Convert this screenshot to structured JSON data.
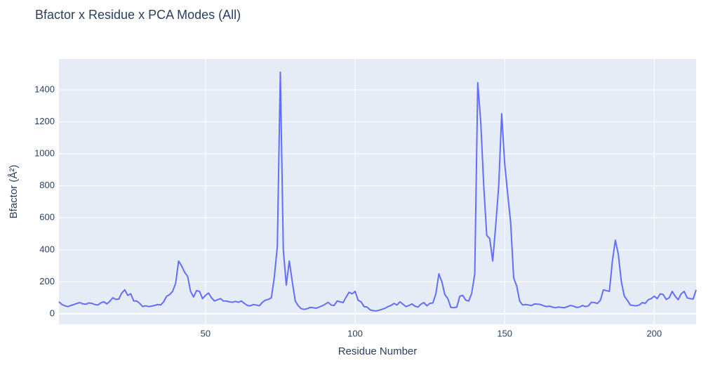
{
  "chart_data": {
    "type": "line",
    "title": "Bfactor x Residue x PCA Modes (All)",
    "x_label": "Residue Number",
    "y_label": "Bfactor (Å²)",
    "color": "#636efa",
    "grid": true,
    "xlim": [
      1,
      214
    ],
    "xticks": [
      50,
      100,
      150,
      200
    ],
    "ylim": [
      -66,
      1593
    ],
    "yticks": [
      0,
      200,
      400,
      600,
      800,
      1000,
      1200,
      1400
    ],
    "x": [
      1,
      2,
      3,
      4,
      5,
      6,
      7,
      8,
      9,
      10,
      11,
      12,
      13,
      14,
      15,
      16,
      17,
      18,
      19,
      20,
      21,
      22,
      23,
      24,
      25,
      26,
      27,
      28,
      29,
      30,
      31,
      32,
      33,
      34,
      35,
      36,
      37,
      38,
      39,
      40,
      41,
      42,
      43,
      44,
      45,
      46,
      47,
      48,
      49,
      50,
      51,
      52,
      53,
      54,
      55,
      56,
      57,
      58,
      59,
      60,
      61,
      62,
      63,
      64,
      65,
      66,
      67,
      68,
      69,
      70,
      71,
      72,
      73,
      74,
      75,
      76,
      77,
      78,
      79,
      80,
      81,
      82,
      83,
      84,
      85,
      86,
      87,
      88,
      89,
      90,
      91,
      92,
      93,
      94,
      95,
      96,
      97,
      98,
      99,
      100,
      101,
      102,
      103,
      104,
      105,
      106,
      107,
      108,
      109,
      110,
      111,
      112,
      113,
      114,
      115,
      116,
      117,
      118,
      119,
      120,
      121,
      122,
      123,
      124,
      125,
      126,
      127,
      128,
      129,
      130,
      131,
      132,
      133,
      134,
      135,
      136,
      137,
      138,
      139,
      140,
      141,
      142,
      143,
      144,
      145,
      146,
      147,
      148,
      149,
      150,
      151,
      152,
      153,
      154,
      155,
      156,
      157,
      158,
      159,
      160,
      161,
      162,
      163,
      164,
      165,
      166,
      167,
      168,
      169,
      170,
      171,
      172,
      173,
      174,
      175,
      176,
      177,
      178,
      179,
      180,
      181,
      182,
      183,
      184,
      185,
      186,
      187,
      188,
      189,
      190,
      191,
      192,
      193,
      194,
      195,
      196,
      197,
      198,
      199,
      200,
      201,
      202,
      203,
      204,
      205,
      206,
      207,
      208,
      209,
      210,
      211,
      212,
      213,
      214
    ],
    "values": [
      75,
      58,
      50,
      45,
      52,
      58,
      65,
      70,
      62,
      60,
      68,
      65,
      58,
      55,
      68,
      75,
      62,
      78,
      100,
      90,
      92,
      130,
      150,
      115,
      125,
      80,
      80,
      65,
      45,
      50,
      45,
      48,
      52,
      58,
      55,
      75,
      110,
      120,
      140,
      190,
      330,
      300,
      260,
      235,
      140,
      105,
      145,
      140,
      95,
      115,
      130,
      100,
      80,
      88,
      95,
      80,
      80,
      75,
      72,
      78,
      72,
      80,
      65,
      52,
      50,
      58,
      55,
      50,
      72,
      85,
      90,
      100,
      230,
      420,
      1510,
      400,
      180,
      330,
      200,
      80,
      50,
      32,
      28,
      32,
      40,
      38,
      35,
      42,
      50,
      60,
      72,
      55,
      52,
      80,
      75,
      70,
      105,
      135,
      125,
      140,
      85,
      75,
      45,
      42,
      25,
      20,
      18,
      22,
      28,
      35,
      45,
      52,
      65,
      55,
      75,
      60,
      45,
      52,
      62,
      48,
      42,
      60,
      70,
      50,
      65,
      68,
      125,
      250,
      200,
      120,
      95,
      40,
      38,
      42,
      110,
      115,
      85,
      80,
      130,
      250,
      1445,
      1200,
      800,
      490,
      470,
      330,
      550,
      800,
      1250,
      940,
      750,
      570,
      225,
      175,
      80,
      55,
      58,
      55,
      52,
      62,
      60,
      58,
      50,
      45,
      48,
      42,
      38,
      42,
      40,
      38,
      45,
      52,
      48,
      40,
      42,
      52,
      45,
      50,
      72,
      70,
      65,
      85,
      150,
      145,
      140,
      330,
      460,
      370,
      200,
      110,
      85,
      55,
      52,
      50,
      55,
      70,
      65,
      88,
      95,
      110,
      95,
      125,
      120,
      90,
      100,
      140,
      110,
      88,
      125,
      140,
      100,
      95,
      92,
      150
    ]
  }
}
